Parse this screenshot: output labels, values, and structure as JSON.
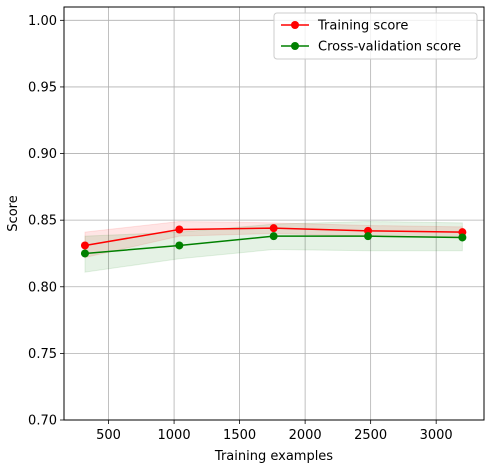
{
  "chart_data": {
    "type": "line",
    "xlabel": "Training examples",
    "ylabel": "Score",
    "xlim": [
      160,
      3365
    ],
    "ylim": [
      0.7,
      1.01
    ],
    "xticks": [
      500,
      1000,
      1500,
      2000,
      2500,
      3000
    ],
    "yticks": [
      0.7,
      0.75,
      0.8,
      0.85,
      0.9,
      0.95,
      1.0
    ],
    "xtick_labels": [
      "500",
      "1000",
      "1500",
      "2000",
      "2500",
      "3000"
    ],
    "ytick_labels": [
      "0.70",
      "0.75",
      "0.80",
      "0.85",
      "0.90",
      "0.95",
      "1.00"
    ],
    "grid": true,
    "legend_position": "top-right",
    "x": [
      320,
      1040,
      1760,
      2480,
      3200
    ],
    "series": [
      {
        "name": "Training score",
        "color": "#ff0000",
        "band_color": "#ff0000",
        "values": [
          0.831,
          0.843,
          0.844,
          0.842,
          0.841
        ],
        "band_low": [
          0.822,
          0.838,
          0.84,
          0.838,
          0.837
        ],
        "band_high": [
          0.841,
          0.849,
          0.848,
          0.846,
          0.845
        ]
      },
      {
        "name": "Cross-validation score",
        "color": "#008000",
        "band_color": "#008000",
        "values": [
          0.825,
          0.831,
          0.838,
          0.838,
          0.837
        ],
        "band_low": [
          0.811,
          0.821,
          0.828,
          0.827,
          0.827
        ],
        "band_high": [
          0.838,
          0.841,
          0.847,
          0.849,
          0.848
        ]
      }
    ]
  }
}
